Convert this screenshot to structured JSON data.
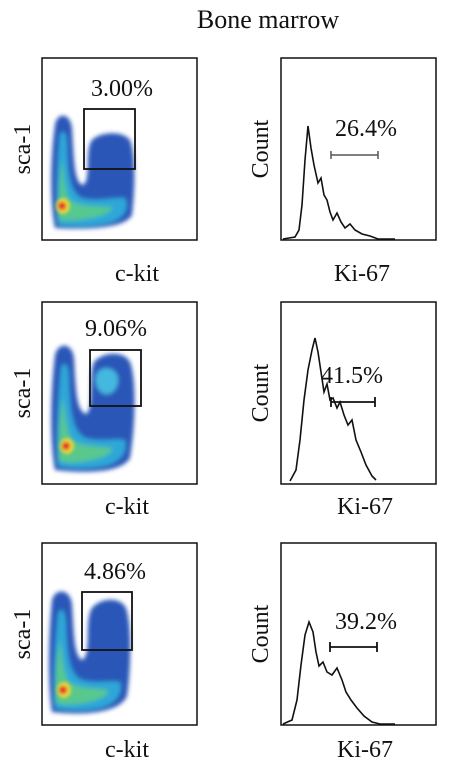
{
  "title": "Bone marrow",
  "chart_data": [
    {
      "type": "heatmap",
      "xlabel": "c-kit",
      "ylabel": "sca-1",
      "gate_label": "3.00%",
      "gate_value": 3.0
    },
    {
      "type": "line",
      "xlabel": "Ki-67",
      "ylabel": "Count",
      "gate_label": "26.4%",
      "gate_value": 26.4
    },
    {
      "type": "heatmap",
      "xlabel": "c-kit",
      "ylabel": "sca-1",
      "gate_label": "9.06%",
      "gate_value": 9.06
    },
    {
      "type": "line",
      "xlabel": "Ki-67",
      "ylabel": "Count",
      "gate_label": "41.5%",
      "gate_value": 41.5
    },
    {
      "type": "heatmap",
      "xlabel": "c-kit",
      "ylabel": "sca-1",
      "gate_label": "4.86%",
      "gate_value": 4.86
    },
    {
      "type": "line",
      "xlabel": "Ki-67",
      "ylabel": "Count",
      "gate_label": "39.2%",
      "gate_value": 39.2
    }
  ]
}
